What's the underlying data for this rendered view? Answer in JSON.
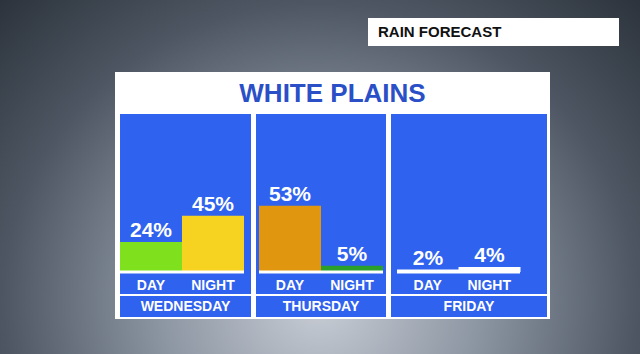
{
  "title": "WHITE PLAINS",
  "annotation": "RAIN FORECAST",
  "chart_data": [
    {
      "type": "bar",
      "title": "WEDNESDAY",
      "categories": [
        "DAY",
        "NIGHT"
      ],
      "values": [
        24,
        45
      ],
      "value_labels": [
        "24%",
        "45%"
      ],
      "colors": [
        "#7fe01e",
        "#f7d321"
      ],
      "data_labels": true,
      "ylim": [
        0,
        100
      ],
      "tick_labels": "x"
    },
    {
      "type": "bar",
      "title": "THURSDAY",
      "categories": [
        "DAY",
        "NIGHT"
      ],
      "values": [
        53,
        5
      ],
      "value_labels": [
        "53%",
        "5%"
      ],
      "colors": [
        "#e0960f",
        "#2aa02a"
      ],
      "data_labels": true,
      "ylim": [
        0,
        100
      ],
      "tick_labels": "x"
    },
    {
      "type": "bar",
      "title": "FRIDAY",
      "categories": [
        "DAY",
        "NIGHT"
      ],
      "values": [
        2,
        4
      ],
      "value_labels": [
        "2%",
        "4%"
      ],
      "colors": [
        "#ffffff",
        "#ffffff"
      ],
      "data_labels": true,
      "ylim": [
        0,
        100
      ],
      "tick_labels": "x"
    }
  ]
}
